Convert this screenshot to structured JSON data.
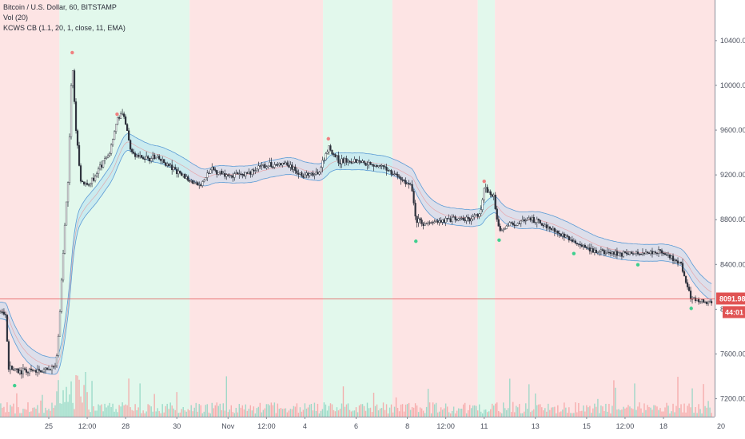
{
  "legend": {
    "symbol": "Bitcoin / U.S. Dollar, 60, BITSTAMP",
    "volume": "Vol (20)",
    "indicator": "KCWS CB (1.1, 20, 1, close, 11, EMA)"
  },
  "colors": {
    "bear_zone": "#fde4e4",
    "bull_zone": "#e2f8ec",
    "up_candle": "#26a69a",
    "down_candle": "#ef5350",
    "body": "#2a2e39",
    "band_blue": "#5b9bd5",
    "band_red": "#ef7f7f",
    "band_green": "#5ccf8c",
    "price_line": "#e05353",
    "badge": "#e05353"
  },
  "price_badge": "8091.98",
  "countdown_badge": "44:01",
  "chart_data": {
    "type": "candlestick",
    "title": "Bitcoin / U.S. Dollar, 60, BITSTAMP",
    "y_ticks": [
      7200,
      7600,
      8000,
      8400,
      8800,
      9200,
      9600,
      10000,
      10400
    ],
    "y_tick_labels": [
      "7200.00",
      "7600.00",
      "8000.00",
      "8400.00",
      "8800.00",
      "9200.00",
      "9600.00",
      "10000.00",
      "10400.00"
    ],
    "ylim": [
      7040,
      10720
    ],
    "x_range_hours": [
      0,
      624
    ],
    "x_ticks": [
      {
        "label": "25",
        "t": 48
      },
      {
        "label": "12:00",
        "t": 84
      },
      {
        "label": "28",
        "t": 120
      },
      {
        "label": "30",
        "t": 168
      },
      {
        "label": "Nov",
        "t": 216
      },
      {
        "label": "12:00",
        "t": 252
      },
      {
        "label": "4",
        "t": 288
      },
      {
        "label": "6",
        "t": 336
      },
      {
        "label": "8",
        "t": 384
      },
      {
        "label": "12:00",
        "t": 420
      },
      {
        "label": "11",
        "t": 456
      },
      {
        "label": "13",
        "t": 504
      },
      {
        "label": "15",
        "t": 552
      },
      {
        "label": "12:00",
        "t": 588
      },
      {
        "label": "18",
        "t": 624
      }
    ],
    "x_last_label": "20",
    "zones": [
      {
        "state": "bear",
        "t0": 0,
        "t1": 58
      },
      {
        "state": "bull",
        "t0": 58,
        "t1": 180
      },
      {
        "state": "bear",
        "t0": 180,
        "t1": 305
      },
      {
        "state": "bull",
        "t0": 305,
        "t1": 370
      },
      {
        "state": "bear",
        "t0": 370,
        "t1": 450
      },
      {
        "state": "bull",
        "t0": 450,
        "t1": 466
      },
      {
        "state": "bear",
        "t0": 466,
        "t1": 680
      }
    ],
    "price_path": [
      [
        0,
        7990
      ],
      [
        8,
        7950
      ],
      [
        10,
        7480
      ],
      [
        20,
        7440
      ],
      [
        45,
        7450
      ],
      [
        55,
        7490
      ],
      [
        58,
        7900
      ],
      [
        62,
        8600
      ],
      [
        66,
        9150
      ],
      [
        70,
        10250
      ],
      [
        73,
        9650
      ],
      [
        78,
        9150
      ],
      [
        85,
        9100
      ],
      [
        95,
        9250
      ],
      [
        105,
        9400
      ],
      [
        112,
        9700
      ],
      [
        118,
        9750
      ],
      [
        125,
        9400
      ],
      [
        135,
        9350
      ],
      [
        150,
        9350
      ],
      [
        165,
        9250
      ],
      [
        180,
        9150
      ],
      [
        190,
        9100
      ],
      [
        200,
        9250
      ],
      [
        215,
        9200
      ],
      [
        230,
        9200
      ],
      [
        250,
        9280
      ],
      [
        270,
        9300
      ],
      [
        285,
        9200
      ],
      [
        300,
        9200
      ],
      [
        310,
        9450
      ],
      [
        320,
        9320
      ],
      [
        335,
        9330
      ],
      [
        350,
        9300
      ],
      [
        365,
        9250
      ],
      [
        380,
        9150
      ],
      [
        388,
        9100
      ],
      [
        392,
        8800
      ],
      [
        400,
        8760
      ],
      [
        420,
        8800
      ],
      [
        440,
        8800
      ],
      [
        452,
        8850
      ],
      [
        456,
        9080
      ],
      [
        465,
        9000
      ],
      [
        470,
        8700
      ],
      [
        480,
        8760
      ],
      [
        500,
        8800
      ],
      [
        520,
        8720
      ],
      [
        540,
        8600
      ],
      [
        555,
        8520
      ],
      [
        575,
        8500
      ],
      [
        600,
        8500
      ],
      [
        620,
        8520
      ],
      [
        640,
        8400
      ],
      [
        650,
        8100
      ],
      [
        665,
        8050
      ],
      [
        680,
        8090
      ]
    ],
    "last_price": 8091.98,
    "volume_ylim": [
      0,
      1000
    ]
  }
}
